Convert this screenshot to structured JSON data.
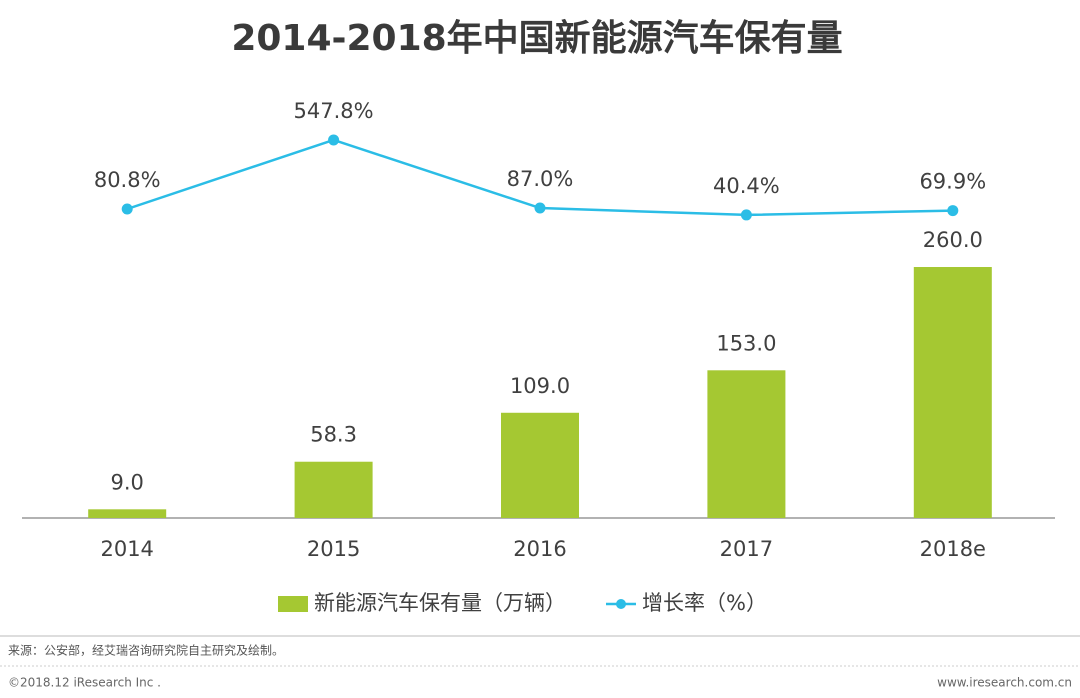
{
  "chart_data": {
    "type": "bar",
    "title": "2014-2018年中国新能源汽车保有量",
    "categories": [
      "2014",
      "2015",
      "2016",
      "2017",
      "2018e"
    ],
    "series": [
      {
        "name": "新能源汽车保有量（万辆）",
        "type": "bar",
        "color": "#a5c832",
        "values": [
          9,
          58.3,
          109,
          153,
          260
        ],
        "value_labels": [
          "9.0",
          "58.3",
          "109.0",
          "153.0",
          "260.0"
        ]
      },
      {
        "name": "增长率（%）",
        "type": "line",
        "axis": "y2",
        "color": "#2bbde6",
        "values": [
          80.8,
          547.8,
          87,
          40.4,
          69.9
        ],
        "value_labels": [
          "80.8%",
          "547.8%",
          "87.0%",
          "40.4%",
          "69.9%"
        ]
      }
    ],
    "ylim": [
      0,
      433
    ],
    "y2lim": [
      -2010,
      818
    ],
    "legend": "bottom"
  },
  "source": "来源：公安部，经艾瑞咨询研究院自主研究及绘制。",
  "copyright": "©2018.12 iResearch Inc .",
  "website": "www.iresearch.com.cn"
}
